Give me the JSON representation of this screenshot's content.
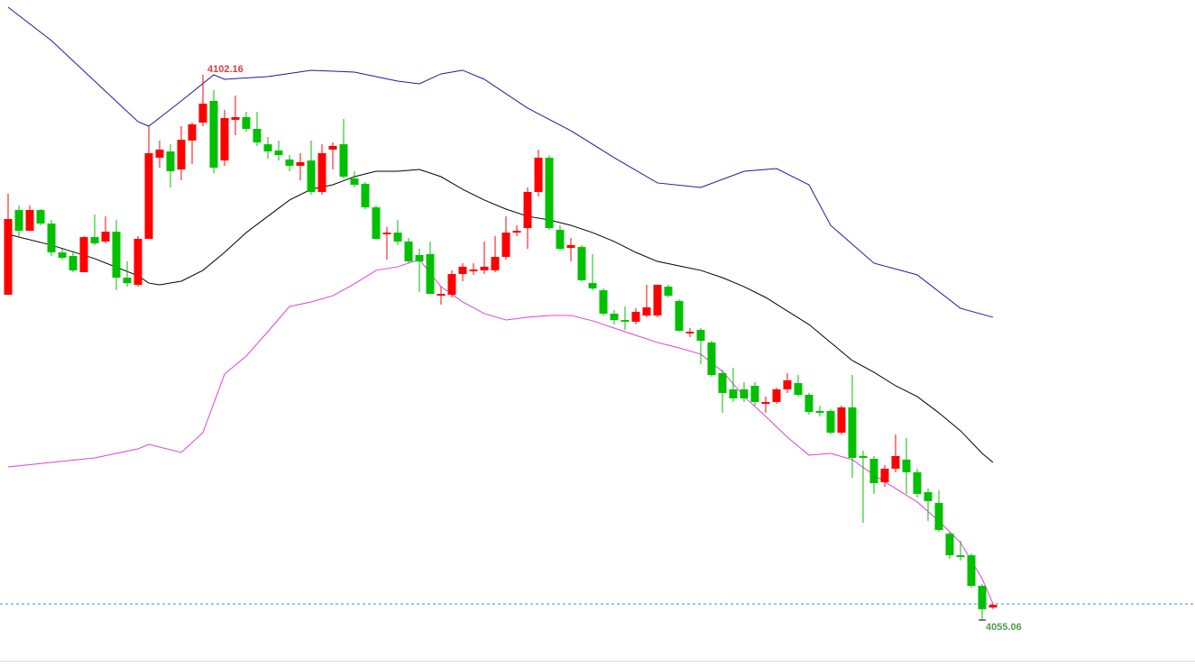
{
  "chart_data": {
    "type": "candlestick",
    "ylim": [
      4051.01,
      4108.62
    ],
    "up_color": "#ff0000",
    "down_color": "#00c000",
    "candles": {
      "open": [
        4083.16,
        4090.48,
        4088.69,
        4090.48,
        4089.31,
        4086.82,
        4086.51,
        4085.11,
        4088.14,
        4087.76,
        4088.61,
        4084.64,
        4084.02,
        4087.99,
        4095.0,
        4095.54,
        4093.98,
        4096.48,
        4098.03,
        4099.9,
        4094.76,
        4098.27,
        4098.5,
        4097.49,
        4096.16,
        4095.62,
        4094.84,
        4094.3,
        4094.76,
        4092.04,
        4095.7,
        4096.16,
        4093.21,
        4092.74,
        4090.71,
        4088.38,
        4088.53,
        4087.76,
        4086.59,
        4086.67,
        4083.08,
        4083.16,
        4084.95,
        4085.19,
        4085.27,
        4085.27,
        4086.43,
        4088.53,
        4088.92,
        4092.04,
        4095.0,
        4088.77,
        4087.21,
        4087.29,
        4084.17,
        4083.55,
        4081.53,
        4080.98,
        4080.83,
        4081.37,
        4081.37,
        4083.86,
        4082.62,
        4079.82,
        4080.13,
        4079.04,
        4076.39,
        4074.99,
        4074.99,
        4075.3,
        4073.74,
        4073.9,
        4074.99,
        4075.53,
        4074.52,
        4073.12,
        4073.12,
        4071.25,
        4073.43,
        4069.23,
        4068.99,
        4066.97,
        4068.14,
        4068.92,
        4067.83,
        4066.11,
        4065.18,
        4062.53,
        4060.66,
        4060.66,
        4058.02,
        4056.15
      ],
      "high": [
        4091.88,
        4090.87,
        4090.87,
        4090.56,
        4089.62,
        4087.13,
        4086.98,
        4088.22,
        4090.09,
        4089.94,
        4089.62,
        4086.04,
        4088.22,
        4097.72,
        4096.48,
        4096.16,
        4097.72,
        4098.03,
        4102.16,
        4100.84,
        4099.12,
        4100.37,
        4098.97,
        4098.97,
        4096.79,
        4096.48,
        4095.23,
        4095.39,
        4096.48,
        4096.16,
        4096.32,
        4098.34,
        4093.83,
        4092.89,
        4090.87,
        4089.0,
        4089.62,
        4088.07,
        4087.13,
        4087.76,
        4083.86,
        4085.27,
        4085.89,
        4085.89,
        4087.76,
        4088.22,
        4089.94,
        4089.16,
        4092.43,
        4095.7,
        4095.23,
        4089.16,
        4088.07,
        4087.45,
        4086.67,
        4083.71,
        4081.84,
        4082.15,
        4081.99,
        4084.02,
        4084.02,
        4084.02,
        4082.77,
        4080.28,
        4080.28,
        4079.19,
        4076.7,
        4076.86,
        4075.61,
        4075.61,
        4074.37,
        4075.14,
        4076.39,
        4076.23,
        4074.68,
        4073.59,
        4073.28,
        4073.59,
        4076.23,
        4069.69,
        4069.23,
        4068.45,
        4071.1,
        4070.78,
        4068.14,
        4066.43,
        4066.27,
        4062.69,
        4061.91,
        4060.82,
        4058.17,
        4056.46
      ],
      "low": [
        4083.16,
        4088.22,
        4088.69,
        4089.16,
        4086.51,
        4086.2,
        4085.11,
        4085.11,
        4087.45,
        4087.6,
        4083.55,
        4083.86,
        4083.86,
        4087.99,
        4094.14,
        4092.43,
        4093.05,
        4094.45,
        4097.72,
        4093.67,
        4094.3,
        4096.94,
        4097.25,
        4096.01,
        4094.92,
        4094.76,
        4093.83,
        4093.05,
        4091.8,
        4091.8,
        4093.98,
        4093.21,
        4092.43,
        4090.56,
        4087.91,
        4086.2,
        4087.45,
        4085.89,
        4083.4,
        4083.24,
        4082.31,
        4082.93,
        4084.33,
        4084.88,
        4084.95,
        4085.11,
        4086.2,
        4088.22,
        4087.13,
        4091.65,
        4088.77,
        4086.98,
        4086.04,
        4084.33,
        4083.55,
        4081.37,
        4080.59,
        4080.13,
        4080.59,
        4081.22,
        4081.22,
        4082.93,
        4079.97,
        4079.5,
        4077.17,
        4076.08,
        4072.96,
        4073.9,
        4073.9,
        4073.59,
        4072.96,
        4073.74,
        4074.68,
        4074.37,
        4072.81,
        4072.65,
        4071.1,
        4071.1,
        4067.36,
        4063.47,
        4065.96,
        4066.58,
        4067.83,
        4065.96,
        4065.65,
        4063.62,
        4062.69,
        4060.35,
        4060.2,
        4057.86,
        4055.06,
        4056.0
      ],
      "close": [
        4089.7,
        4088.69,
        4090.48,
        4089.31,
        4086.82,
        4086.36,
        4085.27,
        4088.14,
        4087.6,
        4088.61,
        4084.64,
        4084.17,
        4087.99,
        4095.39,
        4095.7,
        4093.83,
        4096.55,
        4097.88,
        4099.67,
        4094.14,
        4098.42,
        4098.5,
        4097.49,
        4096.32,
        4095.54,
        4095.23,
        4094.3,
        4094.61,
        4092.04,
        4095.39,
        4096.01,
        4093.36,
        4092.66,
        4090.71,
        4087.99,
        4088.53,
        4087.76,
        4086.04,
        4086.04,
        4083.24,
        4083.24,
        4084.95,
        4085.58,
        4085.34,
        4085.58,
        4086.43,
        4088.53,
        4088.69,
        4092.04,
        4095.0,
        4088.92,
        4087.13,
        4087.45,
        4084.41,
        4083.71,
        4081.53,
        4080.98,
        4080.83,
        4081.68,
        4082.07,
        4084.02,
        4083.08,
        4080.05,
        4079.97,
        4079.19,
        4076.23,
        4074.68,
        4074.21,
        4074.21,
        4073.9,
        4073.9,
        4074.99,
        4075.77,
        4074.52,
        4073.04,
        4072.96,
        4071.25,
        4073.43,
        4069.07,
        4069.07,
        4066.89,
        4068.14,
        4069.23,
        4067.83,
        4065.96,
        4065.34,
        4062.84,
        4060.66,
        4060.51,
        4058.02,
        4056.0,
        4056.38
      ]
    },
    "lines": [
      {
        "color": "#1a1aa0",
        "x": [
          0,
          4,
          8,
          12,
          13,
          16,
          19,
          20,
          24,
          28,
          32,
          36,
          38,
          40,
          42,
          44,
          48,
          52,
          56,
          60,
          64,
          68,
          71,
          74,
          76,
          80,
          84,
          88,
          91
        ],
        "values": [
          4108.0,
          4105.12,
          4101.61,
          4098.11,
          4097.72,
          4099.9,
          4102.16,
          4101.77,
          4102.0,
          4102.55,
          4102.39,
          4101.61,
          4101.38,
          4102.24,
          4102.55,
          4101.77,
          4099.28,
          4097.33,
          4095.0,
          4092.82,
          4092.43,
          4093.83,
          4094.06,
          4092.66,
          4089.16,
          4085.89,
          4084.88,
          4081.99,
          4081.22
        ]
      },
      {
        "color": "#000000",
        "x": [
          0,
          4,
          8,
          12,
          13,
          14,
          16,
          18,
          20,
          22,
          24,
          26,
          28,
          30,
          32,
          34,
          36,
          38,
          40,
          42,
          44,
          46,
          48,
          50,
          52,
          54,
          56,
          58,
          60,
          62,
          64,
          66,
          68,
          70,
          72,
          74,
          76,
          78,
          80,
          82,
          84,
          86,
          88,
          90,
          91
        ],
        "values": [
          4088.38,
          4087.45,
          4086.28,
          4084.8,
          4084.17,
          4084.02,
          4084.33,
          4085.27,
          4086.82,
          4088.53,
          4089.94,
          4091.34,
          4092.27,
          4092.66,
          4093.36,
          4093.83,
          4093.83,
          4093.98,
          4093.36,
          4092.27,
          4091.34,
          4090.56,
          4089.94,
          4089.62,
          4089.16,
          4088.53,
          4087.76,
          4086.82,
          4086.04,
          4085.65,
          4085.27,
          4084.64,
          4083.86,
          4082.93,
          4081.76,
          4080.59,
          4079.04,
          4077.48,
          4076.47,
          4075.3,
          4074.37,
          4072.96,
          4071.41,
          4069.46,
          4068.68
        ]
      },
      {
        "color": "#e040e0",
        "x": [
          0,
          4,
          8,
          10,
          12,
          13,
          16,
          18,
          20,
          22,
          24,
          26,
          28,
          30,
          32,
          34,
          36,
          38,
          40,
          42,
          44,
          46,
          48,
          50,
          52,
          54,
          56,
          58,
          60,
          62,
          64,
          66,
          68,
          70,
          72,
          74,
          76,
          78,
          80,
          82,
          84,
          86,
          88,
          90,
          91
        ],
        "values": [
          4068.29,
          4068.68,
          4069.07,
          4069.46,
          4069.85,
          4070.24,
          4069.54,
          4071.25,
          4076.31,
          4077.87,
          4079.97,
          4082.15,
          4082.54,
          4083.08,
          4084.1,
          4085.27,
          4085.58,
          4086.2,
          4083.86,
          4082.54,
          4081.53,
          4080.98,
          4081.22,
          4081.37,
          4081.37,
          4080.91,
          4080.28,
          4079.66,
          4079.04,
          4078.57,
          4078.03,
          4076.55,
          4074.37,
          4072.65,
          4070.86,
          4069.31,
          4069.46,
          4068.92,
          4067.59,
          4066.43,
          4065.26,
          4063.62,
          4061.75,
          4058.64,
          4056.46
        ]
      }
    ],
    "last_price": {
      "value": 4056.46,
      "color": "#3a8fd0"
    },
    "high_annotation": {
      "value": 4102.16,
      "label": "4102.16",
      "color": "#e03a3a"
    },
    "low_annotation": {
      "value": 4055.06,
      "label": "4055.06",
      "color": "#4e9e4e"
    }
  }
}
